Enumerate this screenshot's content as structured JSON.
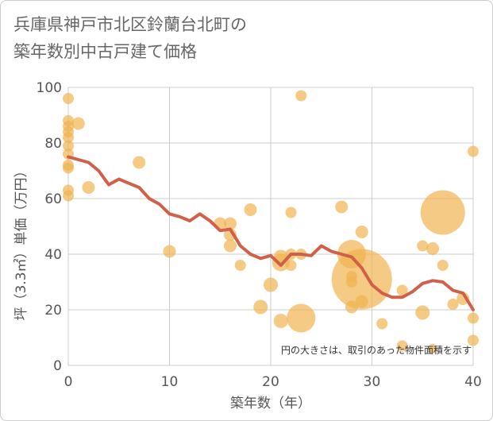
{
  "title_lines": [
    "兵庫県神戸市北区鈴蘭台北町の",
    "築年数別中古戸建て価格"
  ],
  "note": "円の大きさは、取引のあった物件面積を示す",
  "colors": {
    "bubble": "#f0b450",
    "line": "#d0604a",
    "grid": "#cccccc"
  },
  "chart_data": {
    "type": "scatter",
    "title": "兵庫県神戸市北区鈴蘭台北町の築年数別中古戸建て価格",
    "xlabel": "築年数（年）",
    "ylabel": "坪（3.3㎡）単価（万円）",
    "xlim": [
      0,
      40
    ],
    "ylim": [
      0,
      100
    ],
    "xticks": [
      0,
      10,
      20,
      30,
      40
    ],
    "yticks": [
      0,
      20,
      40,
      60,
      80,
      100
    ],
    "grid": true,
    "bubbles": [
      {
        "x": 0,
        "y": 96,
        "r": 7
      },
      {
        "x": 0,
        "y": 88,
        "r": 7
      },
      {
        "x": 0,
        "y": 86,
        "r": 7
      },
      {
        "x": 0,
        "y": 84,
        "r": 7
      },
      {
        "x": 0,
        "y": 82,
        "r": 7
      },
      {
        "x": 0,
        "y": 79,
        "r": 7
      },
      {
        "x": 0,
        "y": 76,
        "r": 7
      },
      {
        "x": 0,
        "y": 72,
        "r": 7
      },
      {
        "x": 0,
        "y": 71,
        "r": 7
      },
      {
        "x": 0,
        "y": 63,
        "r": 7
      },
      {
        "x": 0,
        "y": 61,
        "r": 7
      },
      {
        "x": 1,
        "y": 87,
        "r": 8
      },
      {
        "x": 2,
        "y": 64,
        "r": 8
      },
      {
        "x": 7,
        "y": 73,
        "r": 8
      },
      {
        "x": 10,
        "y": 41,
        "r": 8
      },
      {
        "x": 15,
        "y": 51,
        "r": 8
      },
      {
        "x": 16,
        "y": 51,
        "r": 8
      },
      {
        "x": 16,
        "y": 47,
        "r": 8
      },
      {
        "x": 16,
        "y": 43,
        "r": 8
      },
      {
        "x": 17,
        "y": 36,
        "r": 7
      },
      {
        "x": 18,
        "y": 56,
        "r": 8
      },
      {
        "x": 19,
        "y": 21,
        "r": 9
      },
      {
        "x": 20,
        "y": 29,
        "r": 9
      },
      {
        "x": 21,
        "y": 39,
        "r": 9
      },
      {
        "x": 21,
        "y": 37,
        "r": 11
      },
      {
        "x": 21,
        "y": 16,
        "r": 9
      },
      {
        "x": 22,
        "y": 40,
        "r": 7
      },
      {
        "x": 22,
        "y": 36,
        "r": 7
      },
      {
        "x": 22,
        "y": 55,
        "r": 7
      },
      {
        "x": 23,
        "y": 97,
        "r": 7
      },
      {
        "x": 23,
        "y": 40,
        "r": 7
      },
      {
        "x": 23,
        "y": 17,
        "r": 18
      },
      {
        "x": 27,
        "y": 57,
        "r": 8
      },
      {
        "x": 28,
        "y": 40,
        "r": 18
      },
      {
        "x": 28,
        "y": 32,
        "r": 7
      },
      {
        "x": 28,
        "y": 30,
        "r": 7
      },
      {
        "x": 28,
        "y": 21,
        "r": 8
      },
      {
        "x": 29,
        "y": 48,
        "r": 8
      },
      {
        "x": 29,
        "y": 31,
        "r": 38
      },
      {
        "x": 29,
        "y": 23,
        "r": 8
      },
      {
        "x": 31,
        "y": 15,
        "r": 7
      },
      {
        "x": 33,
        "y": 27,
        "r": 7
      },
      {
        "x": 33,
        "y": 7,
        "r": 7
      },
      {
        "x": 35,
        "y": 43,
        "r": 7
      },
      {
        "x": 35,
        "y": 19,
        "r": 9
      },
      {
        "x": 36,
        "y": 42,
        "r": 8
      },
      {
        "x": 36,
        "y": 6,
        "r": 6
      },
      {
        "x": 37,
        "y": 55,
        "r": 28
      },
      {
        "x": 37,
        "y": 36,
        "r": 7
      },
      {
        "x": 38,
        "y": 22,
        "r": 7
      },
      {
        "x": 39,
        "y": 24,
        "r": 8
      },
      {
        "x": 40,
        "y": 77,
        "r": 7
      },
      {
        "x": 40,
        "y": 17,
        "r": 7
      },
      {
        "x": 40,
        "y": 9,
        "r": 7
      }
    ],
    "series": [
      {
        "x": [
          0,
          1,
          2,
          3,
          4,
          5,
          6,
          7,
          8,
          9,
          10,
          11,
          12,
          13,
          14,
          15,
          16,
          17,
          18,
          19,
          20,
          21,
          22,
          23,
          24,
          25,
          26,
          27,
          28,
          29,
          30,
          31,
          32,
          33,
          34,
          35,
          36,
          37,
          38,
          39,
          40
        ],
        "values": [
          75,
          74,
          73,
          70,
          65,
          67,
          65.5,
          64,
          60,
          58,
          54.5,
          53.5,
          52,
          54.5,
          52,
          48.5,
          49,
          43,
          40,
          38.5,
          39.5,
          36,
          40,
          40,
          39.5,
          43,
          41,
          40,
          39,
          35,
          29,
          26,
          24.5,
          24.5,
          26.5,
          29.5,
          30.5,
          30,
          27,
          26,
          20
        ]
      }
    ]
  }
}
